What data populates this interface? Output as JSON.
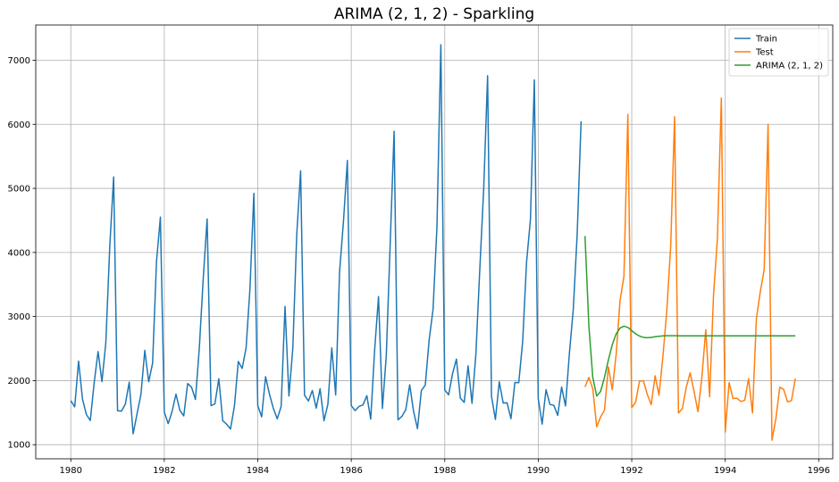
{
  "chart_data": {
    "type": "line",
    "title": "ARIMA (2, 1, 2) - Sparkling",
    "xlabel": "",
    "ylabel": "",
    "xlim": [
      1979.25,
      1996.3
    ],
    "ylim": [
      780,
      7550
    ],
    "grid": true,
    "legend_position": "top-right",
    "x_ticks": [
      1980,
      1982,
      1984,
      1986,
      1988,
      1990,
      1992,
      1994,
      1996
    ],
    "x_tick_labels": [
      "1980",
      "1982",
      "1984",
      "1986",
      "1988",
      "1990",
      "1992",
      "1994",
      "1996"
    ],
    "y_ticks": [
      1000,
      2000,
      3000,
      4000,
      5000,
      6000,
      7000
    ],
    "y_tick_labels": [
      "1000",
      "2000",
      "3000",
      "4000",
      "5000",
      "6000",
      "7000"
    ],
    "series": [
      {
        "name": "Train",
        "color": "#1f77b4",
        "start": 1980.0,
        "step": 0.08333,
        "values": [
          1686,
          1591,
          2304,
          1712,
          1471,
          1377,
          1966,
          2453,
          1984,
          2596,
          4087,
          5179,
          1530,
          1523,
          1633,
          1976,
          1170,
          1480,
          1781,
          2472,
          1981,
          2273,
          3857,
          4551,
          1510,
          1329,
          1518,
          1790,
          1537,
          1449,
          1954,
          1897,
          1706,
          2514,
          3593,
          4524,
          1609,
          1638,
          2030,
          1375,
          1320,
          1245,
          1600,
          2298,
          2191,
          2511,
          3440,
          4923,
          1609,
          1435,
          2061,
          1789,
          1567,
          1404,
          1597,
          3159,
          1759,
          2504,
          4273,
          5274,
          1771,
          1682,
          1846,
          1571,
          1873,
          1374,
          1633,
          2511,
          1776,
          3701,
          4484,
          5436,
          1610,
          1532,
          1598,
          1620,
          1765,
          1399,
          2475,
          3312,
          1566,
          2396,
          4148,
          5891,
          1389,
          1442,
          1548,
          1935,
          1518,
          1250,
          1847,
          1930,
          2638,
          3114,
          4405,
          7242,
          1853,
          1779,
          2108,
          2336,
          1728,
          1661,
          2230,
          1645,
          2421,
          3740,
          4988,
          6757,
          1757,
          1394,
          1982,
          1650,
          1654,
          1406,
          1971,
          1968,
          2608,
          3845,
          4514,
          6694,
          1720,
          1321,
          1859,
          1628,
          1615,
          1457,
          1899,
          1605,
          2424,
          3116,
          4286,
          6047
        ]
      },
      {
        "name": "Test",
        "color": "#ff7f0e",
        "start": 1991.0,
        "step": 0.08333,
        "values": [
          1902,
          2049,
          1874,
          1279,
          1432,
          1540,
          2214,
          1857,
          2408,
          3252,
          3627,
          6153,
          1577,
          1667,
          1993,
          1997,
          1783,
          1625,
          2076,
          1773,
          2377,
          3088,
          4096,
          6119,
          1494,
          1564,
          1898,
          2121,
          1831,
          1515,
          2048,
          2795,
          1749,
          3339,
          4227,
          6410,
          1197,
          1968,
          1720,
          1725,
          1674,
          1693,
          2031,
          1495,
          2968,
          3385,
          3729,
          5999,
          1070,
          1402,
          1897,
          1862,
          1670,
          1688,
          2031
        ]
      },
      {
        "name": "ARIMA (2, 1, 2)",
        "color": "#2ca02c",
        "start": 1991.0,
        "step": 0.08333,
        "values": [
          4256,
          2850,
          2050,
          1760,
          1830,
          2050,
          2320,
          2560,
          2730,
          2820,
          2850,
          2830,
          2780,
          2730,
          2695,
          2675,
          2670,
          2675,
          2685,
          2692,
          2698,
          2700,
          2700,
          2700,
          2698,
          2698,
          2698,
          2698,
          2698,
          2698,
          2698,
          2698,
          2698,
          2698,
          2698,
          2698,
          2698,
          2698,
          2698,
          2698,
          2698,
          2698,
          2698,
          2698,
          2698,
          2698,
          2698,
          2698,
          2698,
          2698,
          2698,
          2698,
          2698,
          2698,
          2698
        ]
      }
    ]
  }
}
